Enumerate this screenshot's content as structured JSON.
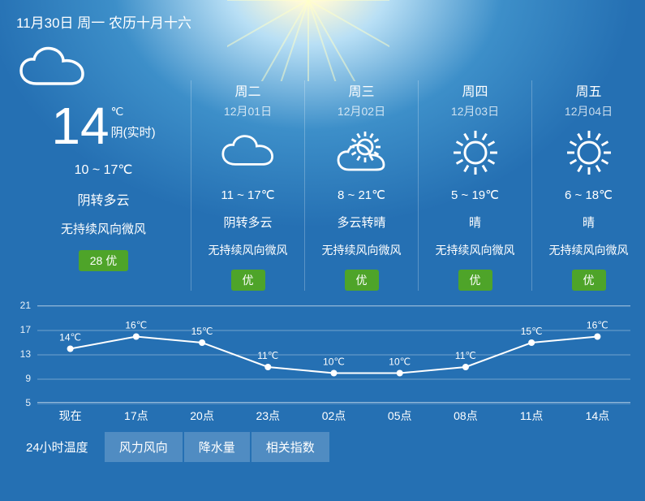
{
  "header": {
    "date_text": "11月30日 周一 农历十月十六"
  },
  "today": {
    "icon": "cloud",
    "temp": "14",
    "unit": "℃",
    "condition_live": "阴(实时)",
    "range": "10 ~ 17℃",
    "condition": "阴转多云",
    "wind": "无持续风向微风",
    "aqi": "28 优"
  },
  "forecast": [
    {
      "day": "周二",
      "date": "12月01日",
      "icon": "cloud",
      "range": "11 ~ 17℃",
      "condition": "阴转多云",
      "wind": "无持续风向微风",
      "aqi": "优"
    },
    {
      "day": "周三",
      "date": "12月02日",
      "icon": "partly-sunny",
      "range": "8 ~ 21℃",
      "condition": "多云转晴",
      "wind": "无持续风向微风",
      "aqi": "优"
    },
    {
      "day": "周四",
      "date": "12月03日",
      "icon": "sunny",
      "range": "5 ~ 19℃",
      "condition": "晴",
      "wind": "无持续风向微风",
      "aqi": "优"
    },
    {
      "day": "周五",
      "date": "12月04日",
      "icon": "sunny",
      "range": "6 ~ 18℃",
      "condition": "晴",
      "wind": "无持续风向微风",
      "aqi": "优"
    }
  ],
  "chart": {
    "type": "line",
    "y_ticks": [
      5,
      9,
      13,
      17,
      21
    ],
    "ylim": [
      5,
      21
    ],
    "x_labels": [
      "现在",
      "17点",
      "20点",
      "23点",
      "02点",
      "05点",
      "08点",
      "11点",
      "14点"
    ],
    "values": [
      14,
      16,
      15,
      11,
      10,
      10,
      11,
      15,
      16
    ],
    "point_labels": [
      "14℃",
      "16℃",
      "15℃",
      "11℃",
      "10℃",
      "10℃",
      "11℃",
      "15℃",
      "16℃"
    ],
    "line_color": "#ffffff",
    "line_width": 2,
    "marker_radius": 4,
    "marker_fill": "#ffffff",
    "grid_color": "rgba(255,255,255,0.35)",
    "label_fontsize": 12,
    "label_color": "#ffffff"
  },
  "tabs": {
    "items": [
      "24小时温度",
      "风力风向",
      "降水量",
      "相关指数"
    ],
    "active_index": 0
  },
  "colors": {
    "aqi_bg": "#4ea429",
    "text": "#ffffff",
    "muted": "rgba(255,255,255,0.75)"
  }
}
